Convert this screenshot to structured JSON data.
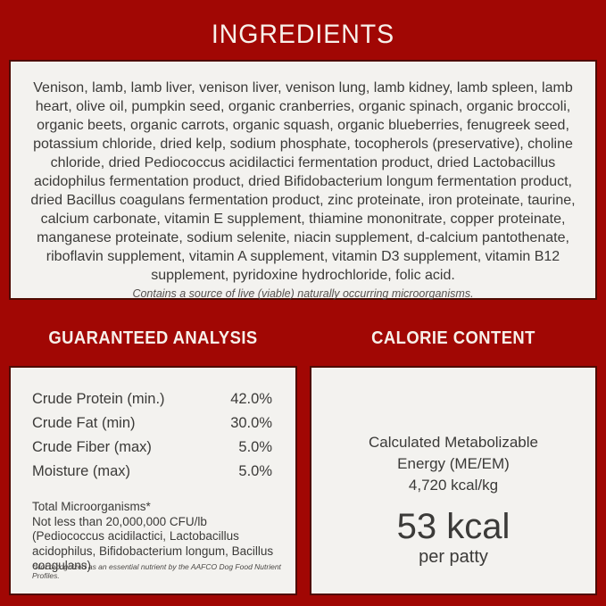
{
  "colors": {
    "background_red": "#A10704",
    "panel_background": "#F3F2EF",
    "panel_border": "#4E0B03",
    "body_text": "#3B3A38",
    "header_text": "#F7F0EA"
  },
  "title": "INGREDIENTS",
  "ingredients": {
    "list": "Venison, lamb, lamb liver, venison liver, venison lung, lamb kidney, lamb spleen, lamb heart, olive oil, pumpkin seed, organic cranberries, organic spinach, organic broccoli, organic beets, organic carrots, organic squash, organic blueberries, fenugreek seed, potassium chloride, dried kelp, sodium phosphate, tocopherols (preservative), choline chloride, dried Pediococcus acidilactici fermentation product, dried Lactobacillus acidophilus fermentation product, dried Bifidobacterium longum fermentation product, dried Bacillus coagulans fermentation product, zinc proteinate, iron proteinate, taurine, calcium carbonate, vitamin E supplement, thiamine mononitrate, copper proteinate, manganese proteinate, sodium selenite, niacin supplement, d-calcium pantothenate, riboflavin supplement, vitamin A supplement, vitamin D3 supplement, vitamin B12 supplement, pyridoxine hydrochloride, folic acid.",
    "note": "Contains a source of live (viable) naturally occurring microorganisms."
  },
  "analysis": {
    "header": "GUARANTEED ANALYSIS",
    "rows": [
      {
        "label": "Crude Protein (min.)",
        "value": "42.0%"
      },
      {
        "label": "Crude Fat (min)",
        "value": "30.0%"
      },
      {
        "label": "Crude Fiber (max)",
        "value": "5.0%"
      },
      {
        "label": "Moisture (max)",
        "value": "5.0%"
      }
    ],
    "micro_title": "Total Microorganisms*",
    "micro_text": "Not less than 20,000,000 CFU/lb (Pediococcus acidilactici, Lactobacillus acidophilus, Bifidobacterium longum, Bacillus coagulans)",
    "footnote": "*Not recognized as an essential nutrient by the AAFCO Dog Food Nutrient Profiles."
  },
  "calorie": {
    "header": "CALORIE CONTENT",
    "me_label": "Calculated Metabolizable Energy (ME/EM)",
    "energy_value": "4,720 kcal/kg",
    "kcal_value": "53 kcal",
    "kcal_unit": "per patty"
  }
}
